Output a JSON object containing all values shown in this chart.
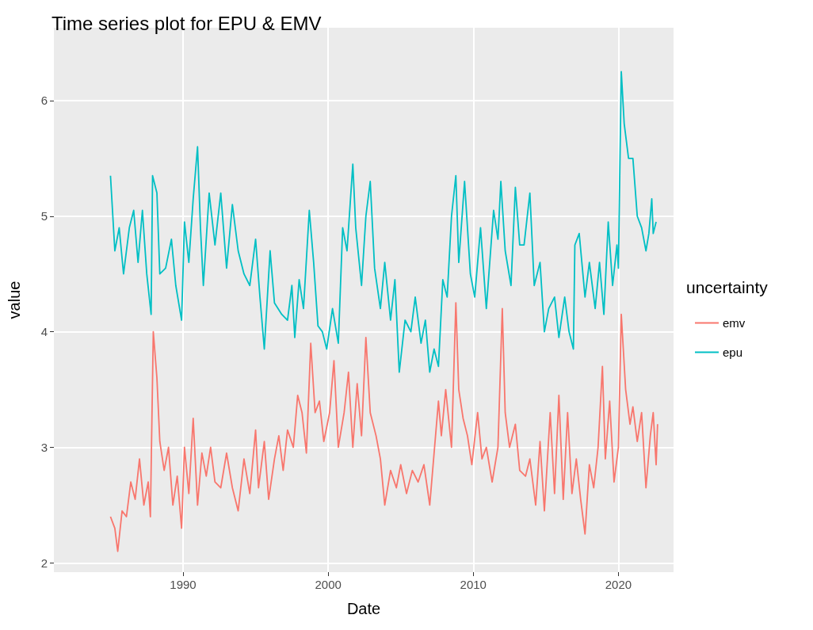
{
  "chart_data": {
    "type": "line",
    "title": "Time series plot for EPU & EMV",
    "xlabel": "Date",
    "ylabel": "value",
    "legend_title": "uncertainty",
    "legend": "right",
    "grid": true,
    "marker": "none",
    "line_style": "solid",
    "xlim": [
      1981.1,
      2023.8
    ],
    "xticks": [
      1990,
      2000,
      2010,
      2020
    ],
    "ylim": [
      1.92,
      6.63
    ],
    "yticks": [
      2,
      3,
      4,
      5,
      6
    ],
    "series": [
      {
        "name": "emv",
        "color": "#f8766d",
        "x": [
          1985.0,
          1985.3,
          1985.5,
          1985.8,
          1986.1,
          1986.4,
          1986.7,
          1987.0,
          1987.3,
          1987.6,
          1987.75,
          1987.95,
          1988.2,
          1988.4,
          1988.7,
          1989.0,
          1989.3,
          1989.6,
          1989.9,
          1990.1,
          1990.4,
          1990.7,
          1991.0,
          1991.3,
          1991.6,
          1991.9,
          1992.2,
          1992.6,
          1993.0,
          1993.4,
          1993.8,
          1994.2,
          1994.6,
          1995.0,
          1995.2,
          1995.6,
          1995.9,
          1996.3,
          1996.6,
          1996.9,
          1997.2,
          1997.6,
          1997.9,
          1998.2,
          1998.5,
          1998.8,
          1999.1,
          1999.4,
          1999.7,
          2000.1,
          2000.4,
          2000.7,
          2001.1,
          2001.4,
          2001.7,
          2002.0,
          2002.3,
          2002.6,
          2002.9,
          2003.3,
          2003.6,
          2003.9,
          2004.3,
          2004.7,
          2005.0,
          2005.4,
          2005.8,
          2006.2,
          2006.6,
          2007.0,
          2007.3,
          2007.6,
          2007.8,
          2008.1,
          2008.5,
          2008.8,
          2009.0,
          2009.3,
          2009.6,
          2009.9,
          2010.3,
          2010.6,
          2010.9,
          2011.3,
          2011.7,
          2012.0,
          2012.2,
          2012.5,
          2012.9,
          2013.2,
          2013.6,
          2013.9,
          2014.3,
          2014.6,
          2014.9,
          2015.3,
          2015.6,
          2015.9,
          2016.2,
          2016.5,
          2016.8,
          2017.1,
          2017.4,
          2017.7,
          2018.0,
          2018.3,
          2018.6,
          2018.9,
          2019.1,
          2019.4,
          2019.7,
          2020.0,
          2020.2,
          2020.5,
          2020.8,
          2021.0,
          2021.3,
          2021.6,
          2021.9,
          2022.2,
          2022.4,
          2022.6,
          2022.7
        ],
        "values": [
          2.4,
          2.3,
          2.1,
          2.45,
          2.4,
          2.7,
          2.55,
          2.9,
          2.5,
          2.7,
          2.4,
          4.0,
          3.6,
          3.05,
          2.8,
          3.0,
          2.5,
          2.75,
          2.3,
          3.0,
          2.6,
          3.25,
          2.5,
          2.95,
          2.75,
          3.0,
          2.7,
          2.65,
          2.95,
          2.65,
          2.45,
          2.9,
          2.6,
          3.15,
          2.65,
          3.05,
          2.55,
          2.9,
          3.1,
          2.8,
          3.15,
          3.0,
          3.45,
          3.3,
          2.95,
          3.9,
          3.3,
          3.4,
          3.05,
          3.3,
          3.75,
          3.0,
          3.3,
          3.65,
          3.0,
          3.55,
          3.1,
          3.95,
          3.3,
          3.1,
          2.9,
          2.5,
          2.8,
          2.65,
          2.85,
          2.6,
          2.8,
          2.7,
          2.85,
          2.5,
          2.95,
          3.4,
          3.1,
          3.5,
          3.0,
          4.25,
          3.5,
          3.25,
          3.1,
          2.85,
          3.3,
          2.9,
          3.0,
          2.7,
          3.0,
          4.2,
          3.3,
          3.0,
          3.2,
          2.8,
          2.75,
          2.9,
          2.5,
          3.05,
          2.45,
          3.3,
          2.6,
          3.45,
          2.55,
          3.3,
          2.6,
          2.9,
          2.55,
          2.25,
          2.85,
          2.65,
          3.0,
          3.7,
          2.9,
          3.4,
          2.7,
          3.0,
          4.15,
          3.5,
          3.2,
          3.35,
          3.05,
          3.3,
          2.65,
          3.1,
          3.3,
          2.85,
          3.2
        ]
      },
      {
        "name": "epu",
        "color": "#00bfc4",
        "x": [
          1985.0,
          1985.3,
          1985.6,
          1985.9,
          1986.3,
          1986.6,
          1986.9,
          1987.2,
          1987.5,
          1987.8,
          1987.9,
          1988.2,
          1988.4,
          1988.8,
          1989.2,
          1989.5,
          1989.9,
          1990.1,
          1990.4,
          1990.7,
          1991.0,
          1991.2,
          1991.4,
          1991.8,
          1992.2,
          1992.6,
          1993.0,
          1993.4,
          1993.8,
          1994.2,
          1994.6,
          1995.0,
          1995.3,
          1995.6,
          1996.0,
          1996.3,
          1996.8,
          1997.2,
          1997.5,
          1997.7,
          1998.0,
          1998.3,
          1998.7,
          1999.0,
          1999.3,
          1999.6,
          1999.9,
          2000.3,
          2000.7,
          2001.0,
          2001.3,
          2001.7,
          2001.9,
          2002.3,
          2002.6,
          2002.9,
          2003.2,
          2003.6,
          2003.9,
          2004.3,
          2004.6,
          2004.9,
          2005.3,
          2005.7,
          2006.0,
          2006.4,
          2006.7,
          2007.0,
          2007.3,
          2007.6,
          2007.9,
          2008.2,
          2008.5,
          2008.8,
          2009.0,
          2009.4,
          2009.8,
          2010.1,
          2010.5,
          2010.9,
          2011.4,
          2011.7,
          2011.9,
          2012.2,
          2012.6,
          2012.9,
          2013.2,
          2013.5,
          2013.9,
          2014.2,
          2014.6,
          2014.9,
          2015.2,
          2015.6,
          2015.9,
          2016.3,
          2016.6,
          2016.9,
          2017.0,
          2017.3,
          2017.7,
          2018.0,
          2018.4,
          2018.7,
          2019.0,
          2019.3,
          2019.6,
          2019.9,
          2020.0,
          2020.2,
          2020.4,
          2020.7,
          2021.0,
          2021.3,
          2021.6,
          2021.9,
          2022.1,
          2022.3,
          2022.4,
          2022.6
        ],
        "values": [
          5.35,
          4.7,
          4.9,
          4.5,
          4.9,
          5.05,
          4.6,
          5.05,
          4.5,
          4.15,
          5.35,
          5.2,
          4.5,
          4.55,
          4.8,
          4.4,
          4.1,
          4.95,
          4.6,
          5.15,
          5.6,
          4.9,
          4.4,
          5.2,
          4.75,
          5.2,
          4.55,
          5.1,
          4.7,
          4.5,
          4.4,
          4.8,
          4.3,
          3.85,
          4.7,
          4.25,
          4.15,
          4.1,
          4.4,
          3.95,
          4.45,
          4.2,
          5.05,
          4.6,
          4.05,
          4.0,
          3.85,
          4.2,
          3.9,
          4.9,
          4.7,
          5.45,
          4.9,
          4.4,
          5.0,
          5.3,
          4.55,
          4.2,
          4.6,
          4.1,
          4.45,
          3.65,
          4.1,
          4.0,
          4.3,
          3.9,
          4.1,
          3.65,
          3.85,
          3.7,
          4.45,
          4.3,
          5.0,
          5.35,
          4.6,
          5.3,
          4.5,
          4.3,
          4.9,
          4.2,
          5.05,
          4.8,
          5.3,
          4.7,
          4.4,
          5.25,
          4.75,
          4.75,
          5.2,
          4.4,
          4.6,
          4.0,
          4.2,
          4.3,
          3.95,
          4.3,
          4.0,
          3.85,
          4.75,
          4.85,
          4.3,
          4.6,
          4.2,
          4.6,
          4.15,
          4.95,
          4.4,
          4.75,
          4.55,
          6.25,
          5.8,
          5.5,
          5.5,
          5.0,
          4.9,
          4.7,
          4.85,
          5.15,
          4.85,
          4.95
        ]
      }
    ]
  }
}
